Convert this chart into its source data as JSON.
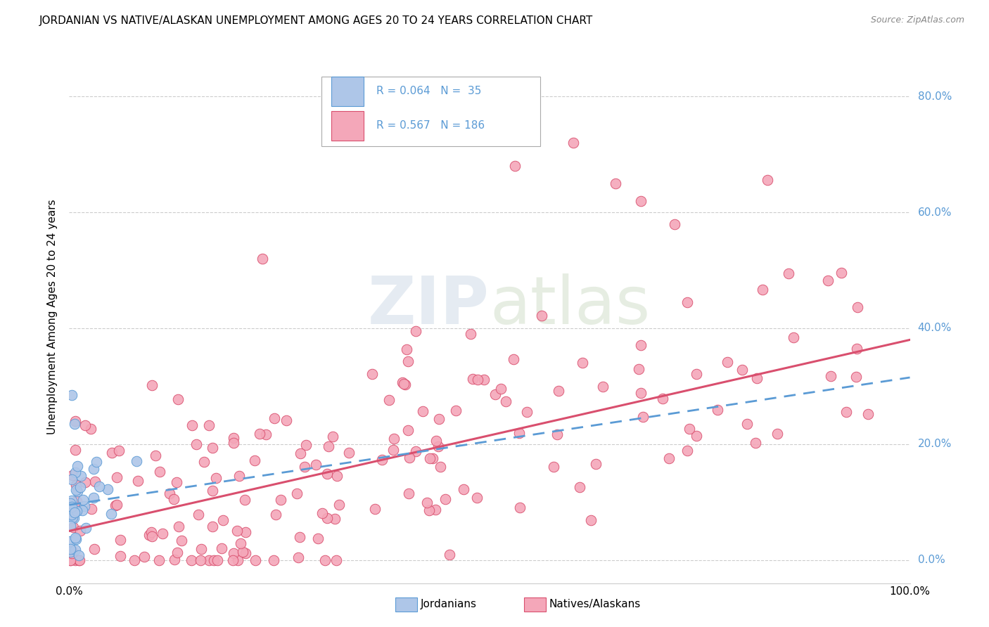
{
  "title": "JORDANIAN VS NATIVE/ALASKAN UNEMPLOYMENT AMONG AGES 20 TO 24 YEARS CORRELATION CHART",
  "source": "Source: ZipAtlas.com",
  "ylabel": "Unemployment Among Ages 20 to 24 years",
  "ytick_labels": [
    "0.0%",
    "20.0%",
    "40.0%",
    "60.0%",
    "80.0%"
  ],
  "ytick_values": [
    0.0,
    0.2,
    0.4,
    0.6,
    0.8
  ],
  "xlim": [
    0.0,
    1.0
  ],
  "ylim": [
    -0.04,
    0.88
  ],
  "jordan_R": 0.064,
  "jordan_N": 35,
  "native_R": 0.567,
  "native_N": 186,
  "jordan_color": "#aec6e8",
  "jordan_edge": "#5b9bd5",
  "native_color": "#f4a7b9",
  "native_edge": "#d94f6e",
  "jordan_line_color": "#5b9bd5",
  "native_line_color": "#d94f6e",
  "legend_jordan_label": "Jordanians",
  "legend_native_label": "Natives/Alaskans",
  "background_color": "#ffffff",
  "title_fontsize": 11,
  "source_fontsize": 9,
  "axis_label_fontsize": 11,
  "tick_fontsize": 11,
  "legend_fontsize": 11,
  "watermark_text": "ZIPatlas",
  "jordan_intercept": 0.095,
  "jordan_slope": 0.22,
  "native_intercept": 0.05,
  "native_slope": 0.33
}
